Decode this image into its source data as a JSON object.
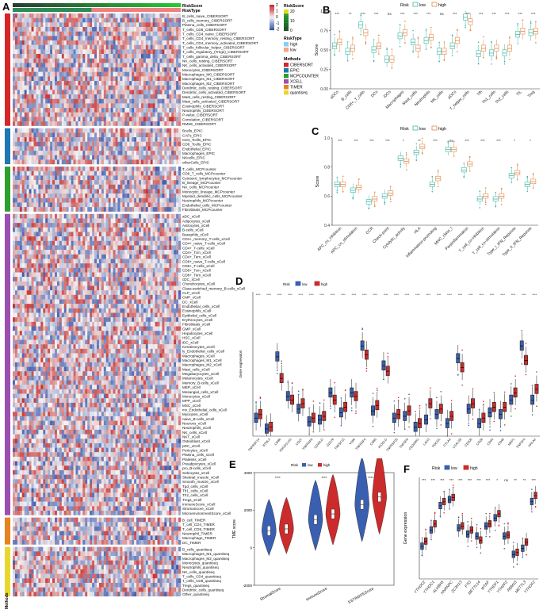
{
  "panels": {
    "a": "A",
    "b": "B",
    "c": "C",
    "d": "D",
    "e": "E",
    "f": "F"
  },
  "colors": {
    "low": "#3fb8a8",
    "high": "#e08a4a",
    "d_low": "#3a5fb0",
    "d_high": "#cc2b2b",
    "hm_low": "#3a55a8",
    "hm_mid": "#f4f4f4",
    "hm_high": "#c42a2a",
    "method_colors": [
      "#d62728",
      "#1f77b4",
      "#2ca02c",
      "#9b4fb0",
      "#e8821e",
      "#e8d82e"
    ],
    "risktype_low": "#2e8b57",
    "risktype_high": "#f08080"
  },
  "heatmap": {
    "annotation_labels": [
      "RiskScore",
      "RiskType"
    ],
    "xlabel": "Methods",
    "groups": [
      {
        "method": "CIBERSORT",
        "rows": [
          "B_cells_naive_CIBERSORT",
          "B_cells_memory_CIBERSORT",
          "Plasma_cells_CIBERSORT",
          "T_cells_CD8_CIBERSORT",
          "T_cells_CD4_naive_CIBERSORT",
          "T_cells_CD4_memory_resting_CIBERSORT",
          "T_cells_CD4_memory_activated_CIBERSORT",
          "T_cells_follicular_helper_CIBERSORT",
          "T_cells_regulatory_(Tregs)_CIBERSORT",
          "T_cells_gamma_delta_CIBERSORT",
          "NK_cells_resting_CIBERSORT",
          "NK_cells_activated_CIBERSORT",
          "Monocytes_CIBERSORT",
          "Macrophages_M0_CIBERSORT",
          "Macrophages_M1_CIBERSORT",
          "Macrophages_M2_CIBERSORT",
          "Dendritic_cells_resting_CIBERSORT",
          "Dendritic_cells_activated_CIBERSORT",
          "Mast_cells_resting_CIBERSORT",
          "Mast_cells_activated_CIBERSORT",
          "Eosinophils_CIBERSORT",
          "Neutrophils_CIBERSORT",
          "P-value_CIBERSORT",
          "Correlation_CIBERSORT",
          "RMSE_CIBERSORT"
        ]
      },
      {
        "method": "EPIC",
        "rows": [
          "Bcells_EPIC",
          "CAFs_EPIC",
          "CD4_Tcells_EPIC",
          "CD8_Tcells_EPIC",
          "Endothelial_EPIC",
          "Macrophages_EPIC",
          "NKcells_EPIC",
          "otherCells_EPIC"
        ]
      },
      {
        "method": "MCPCOUNTER",
        "rows": [
          "T_cells_MCPcounter",
          "CD8_T_cells_MCPcounter",
          "Cytotoxic_lymphocytes_MCPcounter",
          "B_lineage_MCPcounter",
          "NK_cells_MCPcounter",
          "Monocytic_lineage_MCPcounter",
          "Myeloid_dendritic_cells_MCPcounter",
          "Neutrophils_MCPcounter",
          "Endothelial_cells_MCPcounter",
          "Fibroblasts_MCPcounter"
        ]
      },
      {
        "method": "XCELL",
        "rows": [
          "aDC_xCell",
          "Adipocytes_xCell",
          "Astrocytes_xCell",
          "B-cells_xCell",
          "Basophils_xCell",
          "CD4+_memory_T-cells_xCell",
          "CD4+_naive_T-cells_xCell",
          "CD4+_T-cells_xCell",
          "CD4+_Tcm_xCell",
          "CD4+_Tem_xCell",
          "CD8+_naive_T-cells_xCell",
          "CD8+_T-cells_xCell",
          "CD8+_Tcm_xCell",
          "CD8+_Tem_xCell",
          "cDC_xCell",
          "Chondrocytes_xCell",
          "Class-switched_memory_B-cells_xCell",
          "CLP_xCell",
          "CMP_xCell",
          "DC_xCell",
          "Endothelial_cells_xCell",
          "Eosinophils_xCell",
          "Epithelial_cells_xCell",
          "Erythrocytes_xCell",
          "Fibroblasts_xCell",
          "GMP_xCell",
          "Hepatocytes_xCell",
          "HSC_xCell",
          "iDC_xCell",
          "Keratinocytes_xCell",
          "ly_Endothelial_cells_xCell",
          "Macrophages_xCell",
          "Macrophages_M1_xCell",
          "Macrophages_M2_xCell",
          "Mast_cells_xCell",
          "Megakaryocytes_xCell",
          "Melanocytes_xCell",
          "Memory_B-cells_xCell",
          "MEP_xCell",
          "Mesangial_cells_xCell",
          "Monocytes_xCell",
          "MPP_xCell",
          "MSC_xCell",
          "mv_Endothelial_cells_xCell",
          "Myocytes_xCell",
          "naive_B-cells_xCell",
          "Neurons_xCell",
          "Neutrophils_xCell",
          "NK_cells_xCell",
          "NKT_xCell",
          "Osteoblast_xCell",
          "pDC_xCell",
          "Pericytes_xCell",
          "Plasma_cells_xCell",
          "Platelets_xCell",
          "Preadipocytes_xCell",
          "pro_B-cells_xCell",
          "Sebocytes_xCell",
          "Skeletal_muscle_xCell",
          "Smooth_muscle_xCell",
          "Tgd_cells_xCell",
          "Th1_cells_xCell",
          "Th2_cells_xCell",
          "Tregs_xCell",
          "ImmuneScore_xCell",
          "StromaScore_xCell",
          "MicroenvironmentScore_xCell"
        ]
      },
      {
        "method": "TIMER",
        "rows": [
          "B_cell_TIMER",
          "T_cell_CD4_TIMER",
          "T_cell_CD8_TIMER",
          "Neutrophil_TIMER",
          "Macrophage_TIMER",
          "DC_TIMER"
        ]
      },
      {
        "method": "quantiseq",
        "rows": [
          "B_cells_quantiseq",
          "Macrophages_M1_quantiseq",
          "Macrophages_M2_quantiseq",
          "Monocytes_quantiseq",
          "Neutrophils_quantiseq",
          "NK_cells_quantiseq",
          "T_cells_CD4_quantiseq",
          "T_cells_CD8_quantiseq",
          "Tregs_quantiseq",
          "Dendritic_cells_quantiseq",
          "Other_quantiseq"
        ]
      }
    ],
    "legend": {
      "colorbar_ticks": [
        "2",
        "1",
        "0",
        "-1",
        "-2"
      ],
      "riskscore_title": "RiskScore",
      "riskscore_ticks": [
        "20",
        "10",
        "0"
      ],
      "risktype_title": "RiskType",
      "risktype_items": [
        "high",
        "low"
      ],
      "methods_title": "Methods",
      "methods_items": [
        "CIBERSORT",
        "EPIC",
        "MCPCOUNTER",
        "XCELL",
        "TIMER",
        "quantiseq"
      ]
    }
  },
  "chart_data": [
    {
      "panel": "B",
      "type": "box",
      "legend_title": "Risk",
      "legend": [
        "low",
        "high"
      ],
      "ylabel": "Score",
      "ylim": [
        0,
        1.0
      ],
      "yticks": [
        "0.00",
        "0.25",
        "0.50",
        "0.75",
        "1.00"
      ],
      "categories": [
        "aDCs",
        "B_cells",
        "CD8+_T_cells",
        "DCs",
        "iDCs",
        "Macrophages",
        "Mast_cells",
        "Neutrophils",
        "NK_cells",
        "pDCs",
        "T_helper_cells",
        "Tfh",
        "Th1_cells",
        "Th2_cells",
        "TIL",
        "Treg"
      ],
      "significance": [
        "***",
        "**",
        "***",
        "***",
        "ns",
        "***",
        "***",
        "***",
        "ns",
        "***",
        "***",
        "***",
        "***",
        "***",
        "***",
        "***"
      ],
      "series": [
        {
          "name": "low",
          "values": [
            0.55,
            0.48,
            0.82,
            0.5,
            0.38,
            0.68,
            0.6,
            0.62,
            0.48,
            0.55,
            0.92,
            0.45,
            0.46,
            0.46,
            0.7,
            0.72
          ]
        },
        {
          "name": "high",
          "values": [
            0.6,
            0.52,
            0.72,
            0.55,
            0.38,
            0.72,
            0.52,
            0.66,
            0.48,
            0.62,
            0.86,
            0.52,
            0.52,
            0.52,
            0.74,
            0.74
          ]
        }
      ]
    },
    {
      "panel": "C",
      "type": "box",
      "legend_title": "Risk",
      "legend": [
        "low",
        "high"
      ],
      "ylabel": "Score",
      "ylim": [
        0.4,
        1.0
      ],
      "yticks": [
        "0.4",
        "0.6",
        "0.8",
        "1.0"
      ],
      "categories": [
        "APC_co_inhibition",
        "APC_co_stimulation",
        "CCR",
        "Check-point",
        "Cytolytic_activity",
        "HLA",
        "Inflammation-promoting",
        "MHC_class_I",
        "Parainflammation",
        "T_cell_co-inhibition",
        "T_cell_co-stimulation",
        "Type_I_IFN_Reponse",
        "Type_II_IFN_Reponse"
      ],
      "significance": [
        "***",
        "***",
        "***",
        "***",
        "*",
        "**",
        "***",
        "ns",
        "***",
        "***",
        "***",
        "*",
        "*"
      ],
      "series": [
        {
          "name": "low",
          "values": [
            0.68,
            0.64,
            0.56,
            0.6,
            0.86,
            0.9,
            0.68,
            0.92,
            0.78,
            0.58,
            0.58,
            0.74,
            0.68
          ]
        },
        {
          "name": "high",
          "values": [
            0.68,
            0.66,
            0.58,
            0.62,
            0.84,
            0.94,
            0.72,
            0.92,
            0.82,
            0.6,
            0.6,
            0.76,
            0.7
          ]
        }
      ]
    },
    {
      "panel": "D",
      "type": "box",
      "legend_title": "Risk",
      "legend": [
        "low",
        "high"
      ],
      "ylabel": "Gene expression",
      "ylim": [
        0,
        8
      ],
      "categories": [
        "TNFRSF14",
        "BTNL2",
        "CD86",
        "PDCD1LG2",
        "CD27",
        "TNFRSF8",
        "CD40LG",
        "CD276",
        "TNFSF15",
        "VSIR",
        "TNFRSF4",
        "CD80",
        "ICOSLG",
        "TNFRSF25",
        "TNFSF9",
        "CD200R1",
        "LAG3",
        "PDCD1",
        "CTLA4",
        "LGALS9",
        "CD200",
        "CD28",
        "CD44",
        "CD48",
        "NRP1",
        "TNFSF4",
        "HHLA2"
      ],
      "significance": [
        "****",
        "****",
        "****",
        "****",
        "****",
        "****",
        "****",
        "****",
        "****",
        "****",
        "****",
        "****",
        "****",
        "****",
        "****",
        "****",
        "****",
        "****",
        "****",
        "****",
        "****",
        "****",
        "****",
        "****",
        "****",
        "****",
        "****"
      ],
      "series": [
        {
          "name": "low",
          "values": [
            1.0,
            0.4,
            4.4,
            2.2,
            1.5,
            0.8,
            0.9,
            2.4,
            1.3,
            2.4,
            5.0,
            1.4,
            3.9,
            1.0,
            1.1,
            0.5,
            0.9,
            1.2,
            0.7,
            4.3,
            1.5,
            0.7,
            1.3,
            1.2,
            2.0,
            5.0,
            2.0
          ]
        },
        {
          "name": "high",
          "values": [
            1.2,
            0.5,
            3.2,
            2.0,
            1.8,
            1.0,
            1.1,
            2.0,
            1.6,
            2.2,
            4.5,
            1.7,
            3.6,
            1.2,
            1.4,
            0.7,
            1.8,
            1.5,
            1.1,
            3.8,
            1.8,
            1.0,
            1.6,
            1.6,
            2.4,
            4.2,
            2.6
          ]
        }
      ]
    },
    {
      "panel": "E",
      "type": "violin",
      "legend_title": "Risk",
      "legend": [
        "low",
        "high"
      ],
      "ylabel": "TME score",
      "ylim": [
        -2000,
        4000
      ],
      "yticks": [
        "-2000",
        "0",
        "2000",
        "4000"
      ],
      "categories": [
        "StromalScore",
        "ImmuneScore",
        "ESTIMATEScore"
      ],
      "significance": [
        "****",
        "****",
        "****"
      ],
      "series": [
        {
          "name": "low",
          "values": [
            900,
            1500,
            2300
          ]
        },
        {
          "name": "high",
          "values": [
            1000,
            1800,
            2700
          ]
        }
      ]
    },
    {
      "panel": "F",
      "type": "box",
      "legend_title": "Risk",
      "legend": [
        "low",
        "high"
      ],
      "ylabel": "Gene expression",
      "ylim": [
        0,
        10
      ],
      "categories": [
        "YTHDC2",
        "YTHDC1",
        "ALKBH5",
        "HNRNPC",
        "ZC3H13",
        "FTO",
        "METTL14",
        "WTAP",
        "YTHDF1",
        "YTHDF2",
        "RBM15",
        "METTL3",
        "YTHDF2"
      ],
      "significance": [
        "***",
        "***",
        "***",
        "***",
        "***",
        "***",
        "***",
        "***",
        "*",
        "ns",
        "**",
        "**",
        "***"
      ],
      "series": [
        {
          "name": "low",
          "values": [
            3.2,
            4.8,
            7.2,
            7.8,
            5.0,
            4.4,
            4.2,
            5.2,
            6.0,
            4.2,
            2.4,
            3.0,
            7.6
          ]
        },
        {
          "name": "high",
          "values": [
            3.7,
            5.4,
            7.6,
            8.0,
            5.2,
            4.8,
            3.8,
            5.4,
            6.4,
            4.3,
            2.6,
            3.6,
            8.2
          ]
        }
      ]
    }
  ]
}
